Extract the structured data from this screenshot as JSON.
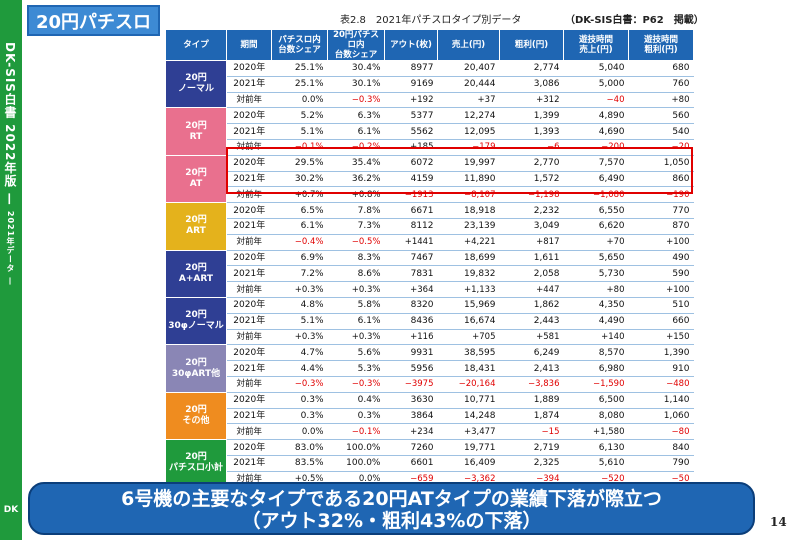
{
  "sidebar": {
    "label": "DK-SIS白書 2022年版 —",
    "sub": "2021年データ —",
    "logo": "DK"
  },
  "badge": "20円パチスロ",
  "table_title": "表2.8　2021年パチスロタイプ別データ",
  "source_note": "（DK-SIS白書：P62　掲載）",
  "headers": [
    "タイプ",
    "期間",
    "パチスロ内\n台数シェア",
    "20円パチスロ内\n台数シェア",
    "アウト(枚)",
    "売上(円)",
    "粗利(円)",
    "遊技時間\n売上(円)",
    "遊技時間\n粗利(円)"
  ],
  "groups": [
    {
      "type": "20円\nノーマル",
      "color": "#2f3f94",
      "rows": [
        [
          "2020年",
          "25.1%",
          "30.4%",
          "8977",
          "20,407",
          "2,774",
          "5,040",
          "680"
        ],
        [
          "2021年",
          "25.1%",
          "30.1%",
          "9169",
          "20,444",
          "3,086",
          "5,000",
          "760"
        ],
        [
          "対前年",
          "0.0%",
          "−0.3%",
          "+192",
          "+37",
          "+312",
          "−40",
          "+80"
        ]
      ]
    },
    {
      "type": "20円\nRT",
      "color": "#e9708e",
      "rows": [
        [
          "2020年",
          "5.2%",
          "6.3%",
          "5377",
          "12,274",
          "1,399",
          "4,890",
          "560"
        ],
        [
          "2021年",
          "5.1%",
          "6.1%",
          "5562",
          "12,095",
          "1,393",
          "4,690",
          "540"
        ],
        [
          "対前年",
          "−0.1%",
          "−0.2%",
          "+185",
          "−179",
          "−6",
          "−200",
          "−20"
        ]
      ]
    },
    {
      "type": "20円\nAT",
      "color": "#e9708e",
      "rows": [
        [
          "2020年",
          "29.5%",
          "35.4%",
          "6072",
          "19,997",
          "2,770",
          "7,570",
          "1,050"
        ],
        [
          "2021年",
          "30.2%",
          "36.2%",
          "4159",
          "11,890",
          "1,572",
          "6,490",
          "860"
        ],
        [
          "対前年",
          "+0.7%",
          "+0.8%",
          "−1913",
          "−8,107",
          "−1,198",
          "−1,080",
          "−190"
        ]
      ]
    },
    {
      "type": "20円\nART",
      "color": "#e4b21c",
      "rows": [
        [
          "2020年",
          "6.5%",
          "7.8%",
          "6671",
          "18,918",
          "2,232",
          "6,550",
          "770"
        ],
        [
          "2021年",
          "6.1%",
          "7.3%",
          "8112",
          "23,139",
          "3,049",
          "6,620",
          "870"
        ],
        [
          "対前年",
          "−0.4%",
          "−0.5%",
          "+1441",
          "+4,221",
          "+817",
          "+70",
          "+100"
        ]
      ]
    },
    {
      "type": "20円\nA+ART",
      "color": "#2f3f94",
      "rows": [
        [
          "2020年",
          "6.9%",
          "8.3%",
          "7467",
          "18,699",
          "1,611",
          "5,650",
          "490"
        ],
        [
          "2021年",
          "7.2%",
          "8.6%",
          "7831",
          "19,832",
          "2,058",
          "5,730",
          "590"
        ],
        [
          "対前年",
          "+0.3%",
          "+0.3%",
          "+364",
          "+1,133",
          "+447",
          "+80",
          "+100"
        ]
      ]
    },
    {
      "type": "20円\n30φノーマル",
      "color": "#2f3f94",
      "rows": [
        [
          "2020年",
          "4.8%",
          "5.8%",
          "8320",
          "15,969",
          "1,862",
          "4,350",
          "510"
        ],
        [
          "2021年",
          "5.1%",
          "6.1%",
          "8436",
          "16,674",
          "2,443",
          "4,490",
          "660"
        ],
        [
          "対前年",
          "+0.3%",
          "+0.3%",
          "+116",
          "+705",
          "+581",
          "+140",
          "+150"
        ]
      ]
    },
    {
      "type": "20円\n30φART他",
      "color": "#8a86b5",
      "rows": [
        [
          "2020年",
          "4.7%",
          "5.6%",
          "9931",
          "38,595",
          "6,249",
          "8,570",
          "1,390"
        ],
        [
          "2021年",
          "4.4%",
          "5.3%",
          "5956",
          "18,431",
          "2,413",
          "6,980",
          "910"
        ],
        [
          "対前年",
          "−0.3%",
          "−0.3%",
          "−3975",
          "−20,164",
          "−3,836",
          "−1,590",
          "−480"
        ]
      ]
    },
    {
      "type": "20円\nその他",
      "color": "#ef8c1f",
      "rows": [
        [
          "2020年",
          "0.3%",
          "0.4%",
          "3630",
          "10,771",
          "1,889",
          "6,500",
          "1,140"
        ],
        [
          "2021年",
          "0.3%",
          "0.3%",
          "3864",
          "14,248",
          "1,874",
          "8,080",
          "1,060"
        ],
        [
          "対前年",
          "0.0%",
          "−0.1%",
          "+234",
          "+3,477",
          "−15",
          "+1,580",
          "−80"
        ]
      ]
    },
    {
      "type": "20円\nパチスロ小計",
      "color": "#1f9a3c",
      "rows": [
        [
          "2020年",
          "83.0%",
          "100.0%",
          "7260",
          "19,771",
          "2,719",
          "6,130",
          "840"
        ],
        [
          "2021年",
          "83.5%",
          "100.0%",
          "6601",
          "16,409",
          "2,325",
          "5,610",
          "790"
        ],
        [
          "対前年",
          "+0.5%",
          "0.0%",
          "−659",
          "−3,362",
          "−394",
          "−520",
          "−50"
        ]
      ]
    }
  ],
  "banner": {
    "line1": "6号機の主要なタイプである20円ATタイプの業績下落が際立つ",
    "line2": "（アウト32%・粗利43%の下落）"
  },
  "page_number": "14"
}
